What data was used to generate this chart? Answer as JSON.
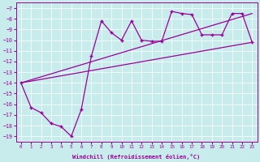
{
  "xlabel": "Windchill (Refroidissement éolien,°C)",
  "background_color": "#c8ecec",
  "line_color": "#990099",
  "xlim": [
    -0.5,
    23.5
  ],
  "ylim": [
    -19.5,
    -6.5
  ],
  "yticks": [
    -19,
    -18,
    -17,
    -16,
    -15,
    -14,
    -13,
    -12,
    -11,
    -10,
    -9,
    -8,
    -7
  ],
  "xticks": [
    0,
    1,
    2,
    3,
    4,
    5,
    6,
    7,
    8,
    9,
    10,
    11,
    12,
    13,
    14,
    15,
    16,
    17,
    18,
    19,
    20,
    21,
    22,
    23
  ],
  "series_main": {
    "x": [
      0,
      1,
      2,
      3,
      4,
      5,
      6,
      7,
      8,
      9,
      10,
      11,
      12,
      13,
      14,
      15,
      16,
      17,
      18,
      19,
      20,
      21,
      22,
      23
    ],
    "y": [
      -14.0,
      -16.3,
      -16.8,
      -17.8,
      -18.1,
      -19.0,
      -16.5,
      -11.5,
      -8.2,
      -9.3,
      -10.0,
      -8.2,
      -10.0,
      -10.1,
      -10.1,
      -7.3,
      -7.5,
      -7.6,
      -9.5,
      -9.5,
      -9.5,
      -7.5,
      -7.5,
      -10.2
    ]
  },
  "line_upper": {
    "x": [
      0,
      23
    ],
    "y": [
      -14.0,
      -7.5
    ]
  },
  "line_lower": {
    "x": [
      0,
      23
    ],
    "y": [
      -14.0,
      -10.2
    ]
  }
}
